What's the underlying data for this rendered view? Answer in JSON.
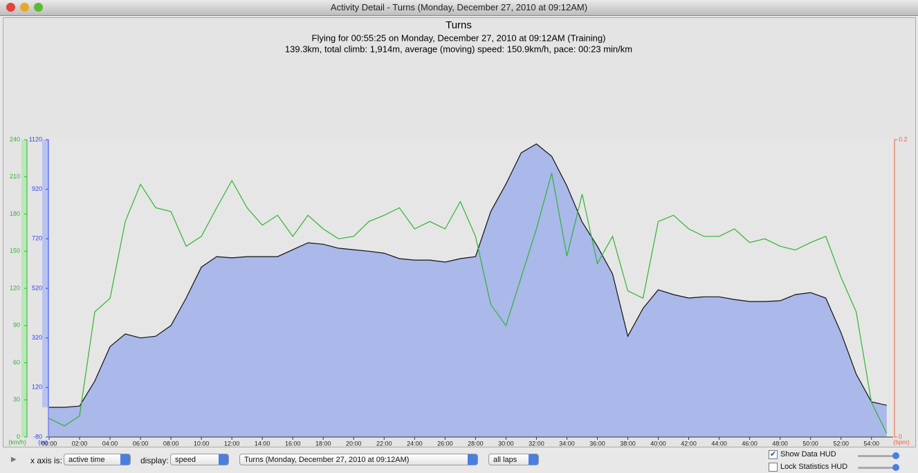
{
  "window": {
    "title": "Activity Detail - Turns  (Monday, December 27, 2010 at 09:12AM)"
  },
  "chart_data": {
    "type": "line",
    "title": "Turns",
    "subtitle": [
      "Flying for 00:55:25 on Monday, December 27, 2010 at 09:12AM (Training)",
      "139.3km, total climb: 1,914m, average (moving) speed: 150.9km/h, pace: 00:23 min/km"
    ],
    "x": [
      0,
      1,
      2,
      3,
      4,
      5,
      6,
      7,
      8,
      9,
      10,
      11,
      12,
      13,
      14,
      15,
      16,
      17,
      18,
      19,
      20,
      21,
      22,
      23,
      24,
      25,
      26,
      27,
      28,
      29,
      30,
      31,
      32,
      33,
      34,
      35,
      36,
      37,
      38,
      39,
      40,
      41,
      42,
      43,
      44,
      45,
      46,
      47,
      48,
      49,
      50,
      51,
      52,
      53,
      54,
      55
    ],
    "xlim": [
      0,
      55.42
    ],
    "xticks": [
      {
        "value": 0,
        "label": "00:00"
      },
      {
        "value": 2,
        "label": "02:00"
      },
      {
        "value": 4,
        "label": "04:00"
      },
      {
        "value": 6,
        "label": "06:00"
      },
      {
        "value": 8,
        "label": "08:00"
      },
      {
        "value": 10,
        "label": "10:00"
      },
      {
        "value": 12,
        "label": "12:00"
      },
      {
        "value": 14,
        "label": "14:00"
      },
      {
        "value": 16,
        "label": "16:00"
      },
      {
        "value": 18,
        "label": "18:00"
      },
      {
        "value": 20,
        "label": "20:00"
      },
      {
        "value": 22,
        "label": "22:00"
      },
      {
        "value": 24,
        "label": "24:00"
      },
      {
        "value": 26,
        "label": "26:00"
      },
      {
        "value": 28,
        "label": "28:00"
      },
      {
        "value": 30,
        "label": "30:00"
      },
      {
        "value": 32,
        "label": "32:00"
      },
      {
        "value": 34,
        "label": "34:00"
      },
      {
        "value": 36,
        "label": "36:00"
      },
      {
        "value": 38,
        "label": "38:00"
      },
      {
        "value": 40,
        "label": "40:00"
      },
      {
        "value": 42,
        "label": "42:00"
      },
      {
        "value": 44,
        "label": "44:00"
      },
      {
        "value": 46,
        "label": "46:00"
      },
      {
        "value": 48,
        "label": "48:00"
      },
      {
        "value": 50,
        "label": "50:00"
      },
      {
        "value": 52,
        "label": "52:00"
      },
      {
        "value": 54,
        "label": "54:00"
      }
    ],
    "ylabel": "(m)",
    "ylim": [
      -80,
      1120
    ],
    "yticks": [
      -80,
      120,
      320,
      520,
      720,
      920,
      1120
    ],
    "y2label": "(km/h)",
    "y2lim": [
      0,
      240
    ],
    "y2ticks": [
      0,
      30,
      60,
      90,
      120,
      150,
      180,
      210,
      240
    ],
    "y3label": "(bpm)",
    "y3lim": [
      0,
      0.2
    ],
    "y3ticks": [
      0,
      0.2
    ],
    "y3color": "#f06040",
    "series": [
      {
        "color": "#aab8ea",
        "axis": "y",
        "values": [
          40,
          40,
          45,
          146,
          285,
          336,
          320,
          327,
          370,
          481,
          606,
          648,
          643,
          648,
          648,
          648,
          676,
          704,
          698,
          682,
          676,
          670,
          662,
          640,
          634,
          634,
          626,
          640,
          648,
          830,
          941,
          1067,
          1103,
          1053,
          933,
          788,
          690,
          578,
          327,
          439,
          514,
          495,
          481,
          486,
          486,
          475,
          467,
          467,
          470,
          495,
          503,
          481,
          341,
          174,
          62,
          48
        ]
      },
      {
        "color": "#2db52d",
        "axis": "y2",
        "values": [
          15,
          9,
          17,
          101,
          112,
          174,
          204,
          185,
          182,
          154,
          162,
          185,
          207,
          185,
          171,
          179,
          162,
          179,
          168,
          160,
          162,
          174,
          179,
          185,
          168,
          174,
          168,
          190,
          162,
          107,
          90,
          129,
          168,
          213,
          146,
          196,
          140,
          162,
          118,
          112,
          174,
          179,
          168,
          162,
          162,
          168,
          157,
          160,
          154,
          151,
          157,
          162,
          129,
          101,
          28,
          3
        ]
      }
    ]
  },
  "controls": {
    "x_axis_label": "x axis is:",
    "x_axis_value": "active time",
    "display_label": "display:",
    "display_value": "speed",
    "activity_value": "Turns  (Monday, December 27, 2010 at 09:12AM)",
    "laps_value": "all laps",
    "show_data_hud": {
      "label": "Show Data HUD",
      "checked": true
    },
    "lock_statistics_hud": {
      "label": "Lock Statistics HUD",
      "checked": false
    }
  }
}
